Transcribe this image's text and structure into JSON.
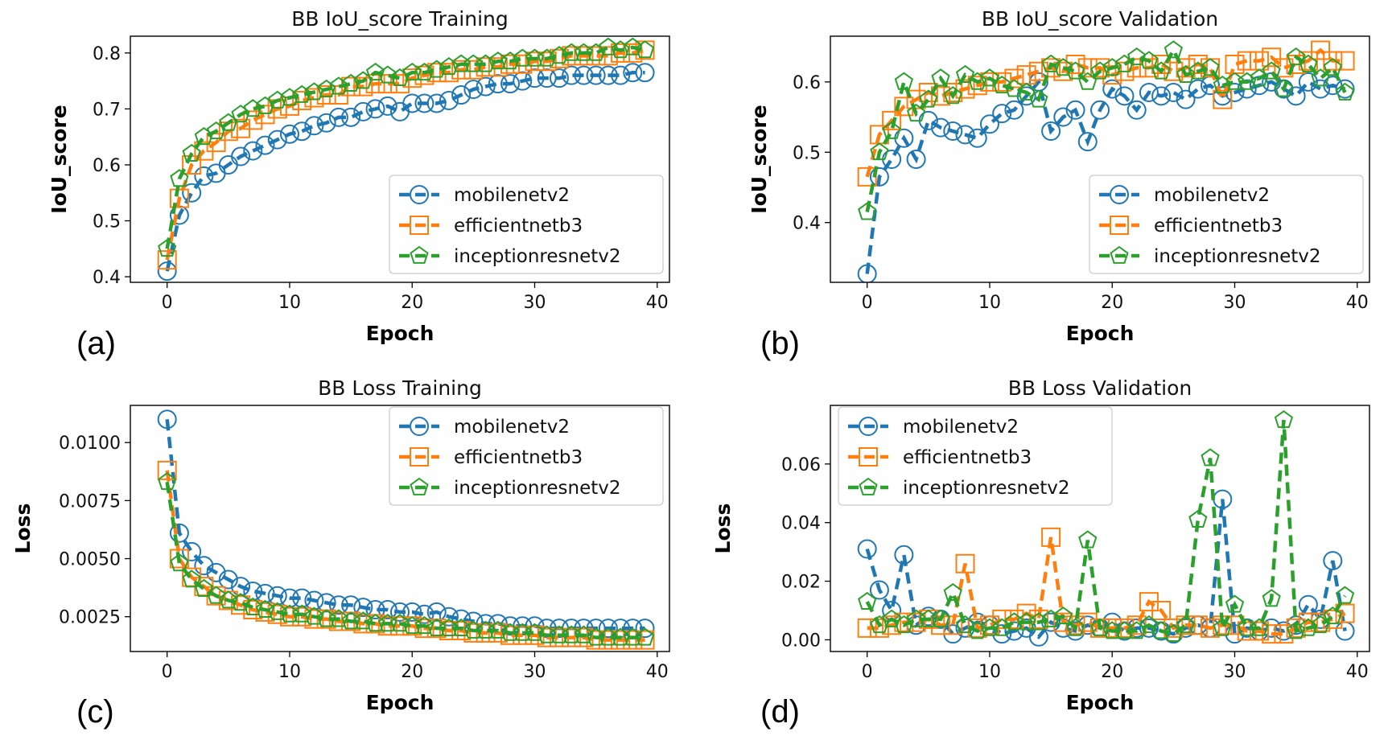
{
  "colors": {
    "mobilenetv2": "#1f77b4",
    "efficientnetb3": "#ff7f0e",
    "inceptionresnetv2": "#2ca02c"
  },
  "chart_data": [
    {
      "id": "a",
      "panel_tag": "(a)",
      "type": "line",
      "title": "BB IoU_score Training",
      "xlabel": "Epoch",
      "ylabel": "IoU_score",
      "xlim": [
        -3,
        41
      ],
      "ylim": [
        0.39,
        0.83
      ],
      "xticks": [
        0,
        10,
        20,
        30,
        40
      ],
      "yticks": [
        0.4,
        0.5,
        0.6,
        0.7,
        0.8
      ],
      "ytick_labels": [
        "0.4",
        "0.5",
        "0.6",
        "0.7",
        "0.8"
      ],
      "legend_loc": "lower-right",
      "series": [
        {
          "name": "mobilenetv2",
          "marker": "circle",
          "x_start": 0,
          "values": [
            0.41,
            0.51,
            0.55,
            0.58,
            0.585,
            0.6,
            0.615,
            0.625,
            0.635,
            0.645,
            0.655,
            0.66,
            0.67,
            0.675,
            0.685,
            0.685,
            0.695,
            0.7,
            0.705,
            0.695,
            0.71,
            0.71,
            0.71,
            0.715,
            0.725,
            0.735,
            0.74,
            0.745,
            0.745,
            0.75,
            0.755,
            0.755,
            0.755,
            0.76,
            0.76,
            0.76,
            0.76,
            0.76,
            0.765,
            0.765
          ]
        },
        {
          "name": "efficientnetb3",
          "marker": "square",
          "x_start": 0,
          "values": [
            0.43,
            0.54,
            0.6,
            0.625,
            0.64,
            0.66,
            0.665,
            0.68,
            0.69,
            0.7,
            0.705,
            0.715,
            0.72,
            0.725,
            0.725,
            0.74,
            0.74,
            0.745,
            0.745,
            0.745,
            0.755,
            0.76,
            0.765,
            0.765,
            0.77,
            0.77,
            0.775,
            0.775,
            0.78,
            0.78,
            0.785,
            0.785,
            0.79,
            0.795,
            0.795,
            0.795,
            0.795,
            0.8,
            0.8,
            0.805
          ]
        },
        {
          "name": "inceptionresnetv2",
          "marker": "pentagon",
          "x_start": 0,
          "values": [
            0.45,
            0.575,
            0.62,
            0.65,
            0.66,
            0.675,
            0.69,
            0.7,
            0.705,
            0.715,
            0.72,
            0.725,
            0.73,
            0.735,
            0.74,
            0.745,
            0.75,
            0.765,
            0.76,
            0.755,
            0.765,
            0.765,
            0.77,
            0.775,
            0.78,
            0.78,
            0.78,
            0.785,
            0.785,
            0.79,
            0.79,
            0.79,
            0.795,
            0.8,
            0.8,
            0.8,
            0.81,
            0.805,
            0.81,
            0.805
          ]
        }
      ]
    },
    {
      "id": "b",
      "panel_tag": "(b)",
      "type": "line",
      "title": "BB IoU_score Validation",
      "xlabel": "Epoch",
      "ylabel": "IoU_score",
      "xlim": [
        -3,
        41
      ],
      "ylim": [
        0.315,
        0.665
      ],
      "xticks": [
        0,
        10,
        20,
        30,
        40
      ],
      "yticks": [
        0.4,
        0.5,
        0.6
      ],
      "ytick_labels": [
        "0.4",
        "0.5",
        "0.6"
      ],
      "legend_loc": "lower-right",
      "series": [
        {
          "name": "mobilenetv2",
          "marker": "circle",
          "x_start": 0,
          "values": [
            0.327,
            0.465,
            0.49,
            0.52,
            0.49,
            0.545,
            0.535,
            0.53,
            0.525,
            0.52,
            0.54,
            0.555,
            0.56,
            0.58,
            0.6,
            0.53,
            0.55,
            0.56,
            0.515,
            0.56,
            0.59,
            0.58,
            0.56,
            0.585,
            0.58,
            0.585,
            0.575,
            0.59,
            0.595,
            0.58,
            0.585,
            0.59,
            0.595,
            0.6,
            0.59,
            0.58,
            0.6,
            0.59,
            0.595,
            0.59
          ]
        },
        {
          "name": "efficientnetb3",
          "marker": "square",
          "x_start": 0,
          "values": [
            0.465,
            0.525,
            0.545,
            0.565,
            0.575,
            0.585,
            0.58,
            0.585,
            0.59,
            0.595,
            0.6,
            0.6,
            0.605,
            0.61,
            0.615,
            0.62,
            0.615,
            0.625,
            0.62,
            0.62,
            0.61,
            0.615,
            0.62,
            0.62,
            0.625,
            0.615,
            0.62,
            0.625,
            0.62,
            0.575,
            0.625,
            0.63,
            0.63,
            0.635,
            0.62,
            0.625,
            0.63,
            0.645,
            0.63,
            0.63
          ]
        },
        {
          "name": "inceptionresnetv2",
          "marker": "pentagon",
          "x_start": 0,
          "values": [
            0.415,
            0.5,
            0.53,
            0.6,
            0.555,
            0.575,
            0.605,
            0.58,
            0.61,
            0.6,
            0.605,
            0.595,
            0.59,
            0.585,
            0.575,
            0.625,
            0.62,
            0.615,
            0.6,
            0.615,
            0.62,
            0.625,
            0.635,
            0.63,
            0.615,
            0.645,
            0.61,
            0.615,
            0.62,
            0.595,
            0.6,
            0.6,
            0.605,
            0.615,
            0.59,
            0.635,
            0.625,
            0.605,
            0.62,
            0.585
          ]
        }
      ]
    },
    {
      "id": "c",
      "panel_tag": "(c)",
      "type": "line",
      "title": "BB Loss Training",
      "xlabel": "Epoch",
      "ylabel": "Loss",
      "xlim": [
        -3,
        41
      ],
      "ylim": [
        0.001,
        0.0116
      ],
      "xticks": [
        0,
        10,
        20,
        30,
        40
      ],
      "yticks": [
        0.0025,
        0.005,
        0.0075,
        0.01
      ],
      "ytick_labels": [
        "0.0025",
        "0.0050",
        "0.0075",
        "0.0100"
      ],
      "legend_loc": "upper-right",
      "series": [
        {
          "name": "mobilenetv2",
          "marker": "circle",
          "x_start": 0,
          "values": [
            0.011,
            0.0061,
            0.0053,
            0.0047,
            0.0044,
            0.0041,
            0.0038,
            0.0036,
            0.0035,
            0.0034,
            0.0033,
            0.0033,
            0.0032,
            0.0031,
            0.003,
            0.003,
            0.0029,
            0.0028,
            0.0028,
            0.0027,
            0.0027,
            0.0026,
            0.0027,
            0.0025,
            0.0024,
            0.0023,
            0.0022,
            0.0022,
            0.0021,
            0.0021,
            0.0021,
            0.002,
            0.002,
            0.002,
            0.002,
            0.002,
            0.002,
            0.002,
            0.002,
            0.002
          ]
        },
        {
          "name": "efficientnetb3",
          "marker": "square",
          "x_start": 0,
          "values": [
            0.0088,
            0.005,
            0.0042,
            0.0038,
            0.0034,
            0.0032,
            0.003,
            0.0028,
            0.0027,
            0.0026,
            0.0025,
            0.0025,
            0.0024,
            0.0024,
            0.0023,
            0.0023,
            0.0022,
            0.0022,
            0.0021,
            0.0021,
            0.0021,
            0.002,
            0.002,
            0.0019,
            0.0019,
            0.0018,
            0.0018,
            0.0018,
            0.0017,
            0.0017,
            0.0017,
            0.0016,
            0.0016,
            0.0016,
            0.0016,
            0.0015,
            0.0015,
            0.0015,
            0.0015,
            0.0015
          ]
        },
        {
          "name": "inceptionresnetv2",
          "marker": "pentagon",
          "x_start": 0,
          "values": [
            0.0083,
            0.0048,
            0.0041,
            0.0037,
            0.0034,
            0.0032,
            0.0031,
            0.0029,
            0.0028,
            0.0027,
            0.0026,
            0.0026,
            0.0025,
            0.0024,
            0.0024,
            0.0023,
            0.0023,
            0.0022,
            0.0022,
            0.0022,
            0.0021,
            0.0021,
            0.002,
            0.002,
            0.002,
            0.0019,
            0.0019,
            0.0019,
            0.0018,
            0.0018,
            0.0018,
            0.0017,
            0.0017,
            0.0017,
            0.0017,
            0.0016,
            0.0016,
            0.0016,
            0.0016,
            0.0016
          ]
        }
      ]
    },
    {
      "id": "d",
      "panel_tag": "(d)",
      "type": "line",
      "title": "BB Loss Validation",
      "xlabel": "Epoch",
      "ylabel": "Loss",
      "xlim": [
        -3,
        41
      ],
      "ylim": [
        -0.004,
        0.08
      ],
      "xticks": [
        0,
        10,
        20,
        30,
        40
      ],
      "yticks": [
        0.0,
        0.02,
        0.04,
        0.06
      ],
      "ytick_labels": [
        "0.00",
        "0.02",
        "0.04",
        "0.06"
      ],
      "legend_loc": "upper-left",
      "series": [
        {
          "name": "mobilenetv2",
          "marker": "circle",
          "x_start": 0,
          "values": [
            0.031,
            0.017,
            0.01,
            0.029,
            0.005,
            0.008,
            0.007,
            0.002,
            0.004,
            0.006,
            0.005,
            0.002,
            0.003,
            0.004,
            0.001,
            0.006,
            0.004,
            0.003,
            0.005,
            0.004,
            0.006,
            0.003,
            0.004,
            0.004,
            0.003,
            0.002,
            0.004,
            0.005,
            0.004,
            0.048,
            0.002,
            0.004,
            0.003,
            0.004,
            0.003,
            0.005,
            0.012,
            0.007,
            0.027,
            0.003
          ]
        },
        {
          "name": "efficientnetb3",
          "marker": "square",
          "x_start": 0,
          "values": [
            0.004,
            0.004,
            0.005,
            0.006,
            0.006,
            0.007,
            0.005,
            0.005,
            0.026,
            0.004,
            0.005,
            0.007,
            0.007,
            0.009,
            0.007,
            0.035,
            0.006,
            0.005,
            0.006,
            0.004,
            0.004,
            0.004,
            0.005,
            0.013,
            0.01,
            0.004,
            0.005,
            0.005,
            0.004,
            0.005,
            0.005,
            0.003,
            0.003,
            0.002,
            0.002,
            0.004,
            0.006,
            0.006,
            0.007,
            0.009
          ]
        },
        {
          "name": "inceptionresnetv2",
          "marker": "pentagon",
          "x_start": 0,
          "values": [
            0.013,
            0.005,
            0.007,
            0.005,
            0.007,
            0.007,
            0.007,
            0.016,
            0.005,
            0.003,
            0.004,
            0.004,
            0.006,
            0.006,
            0.006,
            0.007,
            0.008,
            0.004,
            0.034,
            0.004,
            0.003,
            0.003,
            0.003,
            0.005,
            0.003,
            0.002,
            0.005,
            0.041,
            0.062,
            0.004,
            0.012,
            0.004,
            0.004,
            0.014,
            0.075,
            0.003,
            0.004,
            0.005,
            0.008,
            0.015
          ]
        }
      ]
    }
  ]
}
